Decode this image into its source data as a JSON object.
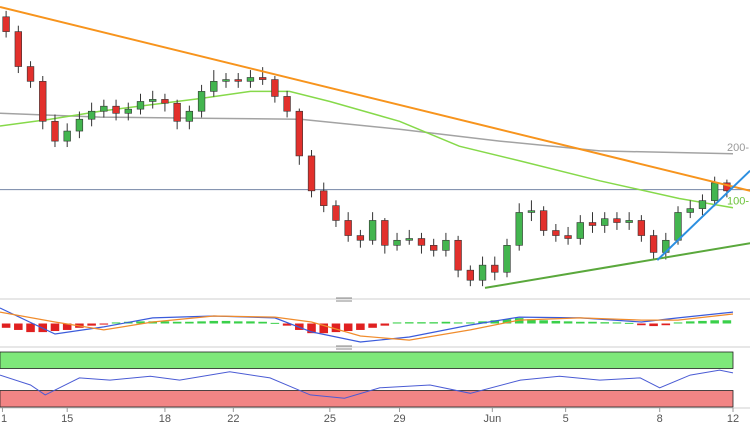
{
  "chart_data": [
    {
      "type": "candlestick",
      "xlim": [
        -0.5,
        59.5
      ],
      "ylim": [
        0,
        100
      ],
      "up_color": "#43b54f",
      "down_color": "#e2302c",
      "wick_color": "#333333",
      "open": [
        95,
        90,
        78.2,
        73.2,
        59.7,
        53.0,
        56.4,
        60.4,
        63.1,
        64.8,
        62.4,
        63.8,
        66.4,
        67.1,
        65.8,
        59.7,
        63.1,
        69.8,
        73.2,
        73.8,
        73.2,
        74.5,
        73.8,
        68.1,
        63.1,
        48.0,
        36.2,
        31.2,
        26.2,
        21.1,
        19.5,
        26.2,
        17.8,
        19.5,
        20.1,
        17.8,
        16.1,
        19.5,
        9.4,
        6.0,
        11.1,
        8.7,
        17.8,
        28.9,
        29.5,
        22.8,
        21.1,
        20.1,
        25.5,
        24.5,
        26.8,
        25.5,
        26.2,
        21.1,
        15.4,
        19.5,
        28.9,
        30.2,
        32.9,
        38.9
      ],
      "high": [
        97,
        92,
        80,
        75,
        62,
        59,
        63,
        66,
        67,
        67,
        66,
        69,
        70,
        69,
        67,
        65,
        72,
        77,
        76,
        76,
        77,
        78,
        75,
        70,
        64,
        50,
        39,
        33,
        29,
        23,
        29,
        27,
        22,
        23,
        22,
        20,
        22,
        21,
        11,
        14,
        14,
        20,
        32,
        33,
        31,
        25,
        24,
        28,
        29,
        29,
        29,
        29,
        28,
        23,
        22,
        31,
        33,
        35,
        41,
        40
      ],
      "low": [
        88,
        76,
        71,
        57,
        51,
        51,
        54,
        58,
        61,
        60,
        60,
        62,
        64,
        63,
        57,
        57,
        61,
        68,
        71,
        71,
        71,
        72,
        66,
        61,
        45,
        34,
        29,
        24,
        19,
        17,
        18,
        15,
        16,
        18,
        15,
        14,
        14,
        7,
        4,
        4,
        6,
        7,
        16,
        26,
        21,
        19,
        18,
        18,
        22,
        22,
        23,
        23,
        19,
        13,
        13,
        18,
        27,
        28,
        31,
        34
      ],
      "close": [
        90,
        78.2,
        73.2,
        59.7,
        53.0,
        56.4,
        60.4,
        63.1,
        64.8,
        62.4,
        63.8,
        66.4,
        67.1,
        65.8,
        59.7,
        63.1,
        69.8,
        73.2,
        73.8,
        73.2,
        74.5,
        73.8,
        68.1,
        63.1,
        48.0,
        36.2,
        31.2,
        26.2,
        21.1,
        19.5,
        26.2,
        17.8,
        19.5,
        20.1,
        17.8,
        16.1,
        19.5,
        9.4,
        6.0,
        11.1,
        8.7,
        17.8,
        28.9,
        29.5,
        22.8,
        21.1,
        20.1,
        25.5,
        24.5,
        26.8,
        25.5,
        26.2,
        21.1,
        15.4,
        19.5,
        28.9,
        30.2,
        32.9,
        38.9,
        36.2
      ],
      "series": [
        {
          "name": "200-",
          "color": "#a3a3a3",
          "x": [
            -0.5,
            7.7,
            15.9,
            24.1,
            32.2,
            40.4,
            48.6,
            59.5
          ],
          "values": [
            62.4,
            61.1,
            60.7,
            60.4,
            57.0,
            53.0,
            49.7,
            48.7
          ]
        },
        {
          "name": "100-",
          "color": "#86d94a",
          "x": [
            -0.5,
            3.6,
            7.7,
            15.9,
            20,
            23.2,
            26.5,
            32.2,
            37.1,
            42.1,
            48.6,
            55.1,
            59.5
          ],
          "values": [
            58.1,
            60.4,
            63.1,
            67.4,
            69.8,
            69.8,
            66.4,
            59.7,
            51.3,
            46.3,
            39.6,
            33.6,
            30.5
          ]
        }
      ],
      "trendlines": [
        {
          "color": "#f7941d",
          "x": [
            -0.5,
            60.9
          ],
          "values": [
            98.3,
            36.2
          ]
        },
        {
          "color": "#5aa83c",
          "x": [
            39.2,
            60.9
          ],
          "values": [
            3.4,
            18.5
          ]
        },
        {
          "color": "#2c8fe0",
          "x": [
            53.3,
            60.9
          ],
          "values": [
            12.8,
            43.0
          ]
        }
      ],
      "hline": {
        "value": 36.6,
        "color": "#7486a6"
      }
    },
    {
      "type": "macd",
      "xlim": [
        -0.5,
        59.5
      ],
      "ylim": [
        -10,
        10
      ],
      "pos_color": "#3ad04a",
      "neg_color": "#e02020",
      "histogram": [
        -2,
        -3,
        -4,
        -4,
        -3.5,
        -3,
        -2,
        -1,
        -0.5,
        0.5,
        0.8,
        1,
        1,
        1,
        0.8,
        0.8,
        1,
        1.2,
        1.2,
        1,
        1,
        0.8,
        0.3,
        -1,
        -3,
        -4.5,
        -4.5,
        -4,
        -3.5,
        -3,
        -2,
        -1,
        0.5,
        0.6,
        0.6,
        0.6,
        0.8,
        0.5,
        0.5,
        1,
        1.5,
        2,
        2.5,
        2,
        1.5,
        1.2,
        1,
        0.8,
        0.8,
        0.6,
        0.5,
        0.3,
        -0.8,
        -1.2,
        -0.8,
        0.5,
        1,
        1.2,
        1.5,
        1.5
      ],
      "series": [
        {
          "color": "#3b5bdb",
          "x": [
            -0.5,
            4,
            8,
            12,
            17,
            22,
            25,
            29,
            33,
            38,
            42,
            47,
            52,
            55,
            59.5
          ],
          "values": [
            7.2,
            -4.9,
            -1.6,
            2.6,
            3.5,
            2.6,
            -3.9,
            -8.6,
            -6.3,
            -0.7,
            3.0,
            2.6,
            0.7,
            2.6,
            5.3
          ]
        },
        {
          "color": "#f08c2c",
          "x": [
            -0.5,
            4,
            8,
            12,
            17,
            22,
            25,
            29,
            33,
            38,
            42,
            47,
            52,
            55,
            59.5
          ],
          "values": [
            5.3,
            0.7,
            -3.0,
            0.7,
            3.5,
            3.0,
            0.7,
            -5.8,
            -7.7,
            -3.0,
            1.6,
            2.6,
            1.6,
            1.6,
            4.4
          ]
        }
      ]
    },
    {
      "type": "rsi",
      "xlim": [
        -0.5,
        59.5
      ],
      "ylim": [
        0,
        100
      ],
      "upper": 70,
      "lower": 30,
      "upper_color": "#7ee87a",
      "lower_color": "#f28585",
      "series": [
        {
          "color": "#4a5bd4",
          "x": [
            -0.5,
            2,
            3.2,
            6.0,
            8.5,
            11.8,
            14.2,
            18.3,
            21.6,
            24.9,
            27.7,
            30.6,
            34.7,
            38,
            42.1,
            45.3,
            48.6,
            51.9,
            53.5,
            56,
            58.4,
            59.5
          ],
          "values": [
            58,
            40,
            22,
            53,
            49,
            56,
            49,
            64,
            53,
            22,
            16,
            35,
            40,
            25,
            49,
            56,
            49,
            53,
            35,
            58,
            67,
            62
          ]
        }
      ],
      "xticks": [
        {
          "value": -0.3,
          "label": "1"
        },
        {
          "value": 5.0,
          "label": "15"
        },
        {
          "value": 13.0,
          "label": "18"
        },
        {
          "value": 18.6,
          "label": "22"
        },
        {
          "value": 26.5,
          "label": "25"
        },
        {
          "value": 32.2,
          "label": "29"
        },
        {
          "value": 39.8,
          "label": "Jun"
        },
        {
          "value": 45.8,
          "label": "5"
        },
        {
          "value": 53.5,
          "label": "8"
        },
        {
          "value": 59.5,
          "label": "12"
        }
      ]
    }
  ]
}
